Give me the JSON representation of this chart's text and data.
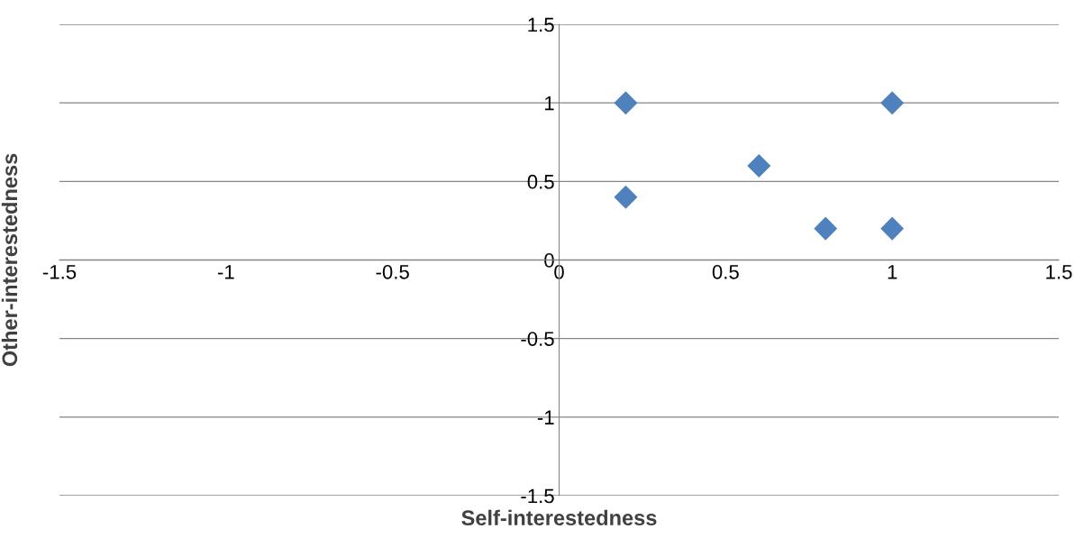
{
  "chart_data": {
    "type": "scatter",
    "xlabel": "Self-interestedness",
    "ylabel": "Other-interestedness",
    "x": [
      0.2,
      1,
      0.6,
      0.2,
      0.8,
      1
    ],
    "series": [
      {
        "color": "#4f81bd",
        "values": [
          1,
          1,
          0.6,
          0.4,
          0.2,
          0.2
        ]
      }
    ],
    "xlim": [
      -1.5,
      1.5
    ],
    "xticks": [
      -1.5,
      -1,
      -0.5,
      0,
      0.5,
      1,
      1.5
    ],
    "ylim": [
      -1.5,
      1.5
    ],
    "yticks": [
      -1.5,
      -1,
      -0.5,
      0,
      0.5,
      1,
      1.5
    ],
    "grid": "y",
    "marker": "diamond"
  }
}
